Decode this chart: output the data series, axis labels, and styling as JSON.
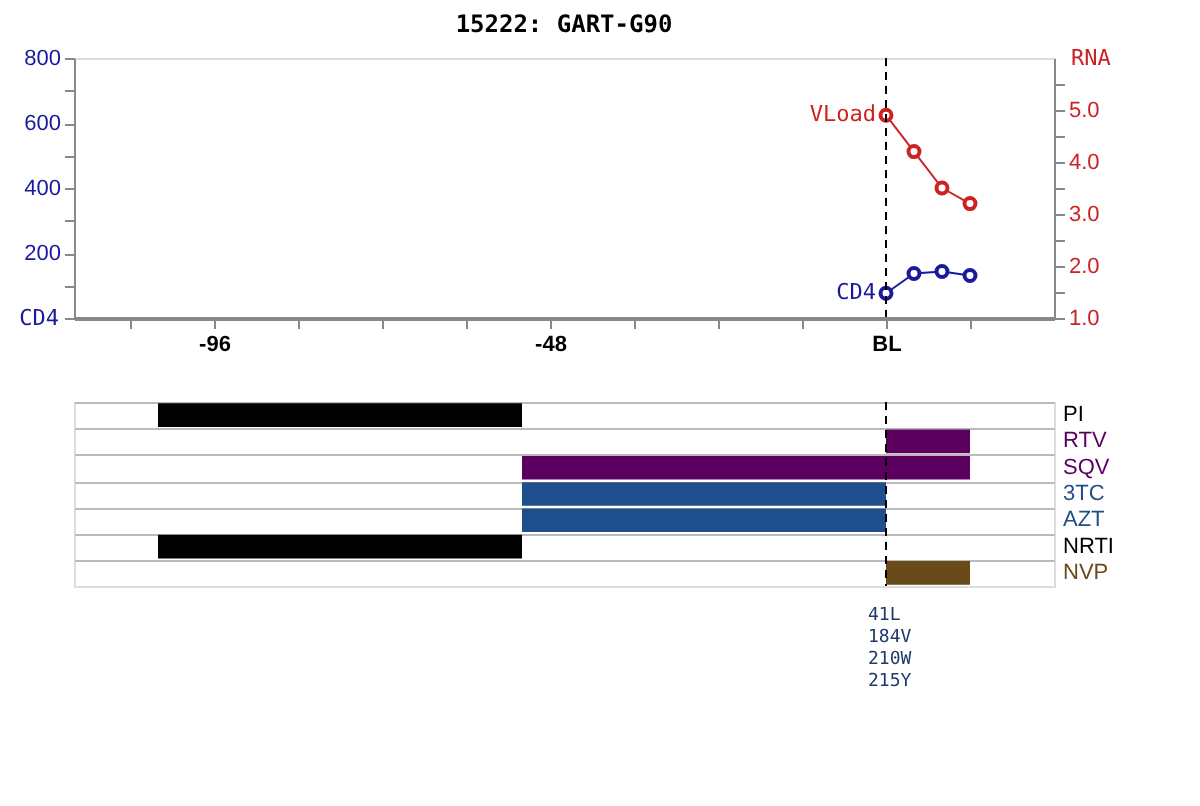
{
  "chart_data": [
    {
      "type": "line",
      "title": "15222: GART-G90",
      "ylabel": "CD4",
      "y2label": "RNA",
      "x": [
        0,
        4,
        8,
        12
      ],
      "xlim": [
        -116,
        24
      ],
      "xticks": [
        {
          "value": -108,
          "label": null
        },
        -96,
        {
          "value": -84,
          "label": null
        },
        {
          "value": -72,
          "label": null
        },
        {
          "value": -60,
          "label": null
        },
        -48,
        {
          "value": -36,
          "label": null
        },
        {
          "value": -24,
          "label": null
        },
        {
          "value": -12,
          "label": null
        },
        {
          "value": 0,
          "label": "BL"
        },
        {
          "value": 12,
          "label": null
        }
      ],
      "ylim": [
        0,
        800
      ],
      "yticks": [
        {
          "value": 0,
          "label": null
        },
        {
          "value": 100,
          "label": null
        },
        200,
        {
          "value": 300,
          "label": null
        },
        400,
        {
          "value": 500,
          "label": null
        },
        600,
        {
          "value": 700,
          "label": null
        },
        800
      ],
      "y2lim": [
        1,
        6
      ],
      "y2ticks": [
        {
          "value": 1,
          "label": "1.0"
        },
        {
          "value": 1.5,
          "label": null
        },
        {
          "value": 2,
          "label": "2.0"
        },
        {
          "value": 2.5,
          "label": null
        },
        {
          "value": 3,
          "label": "3.0"
        },
        {
          "value": 3.5,
          "label": null
        },
        {
          "value": 4,
          "label": "4.0"
        },
        {
          "value": 4.5,
          "label": null
        },
        {
          "value": 5,
          "label": "5.0"
        },
        {
          "value": 5.5,
          "label": null
        }
      ],
      "series": [
        {
          "name": "CD4",
          "color": "#1a1a9c",
          "values": [
            76,
            137,
            143,
            131
          ]
        },
        {
          "name": "VLoad",
          "color": "#cc2222",
          "values": [
            4.9,
            4.2,
            3.5,
            3.2
          ],
          "axis": "y2"
        }
      ],
      "marker": "circle",
      "line_style": "solid",
      "ref_lines": [
        {
          "axis": "x",
          "value": 0,
          "line_style": "dashed",
          "color": "#000000"
        }
      ]
    },
    {
      "type": "bar",
      "orientation": "horizontal",
      "categories": [
        "PI",
        "RTV",
        "SQV",
        "3TC",
        "AZT",
        "NRTI",
        "NVP"
      ],
      "base": [
        -104,
        0,
        -52,
        -52,
        -52,
        -104,
        0
      ],
      "values": [
        52,
        12,
        64,
        52,
        52,
        52,
        12
      ],
      "colors": [
        "#000000",
        "#5c0060",
        "#5c0060",
        "#1f4e8c",
        "#1f4e8c",
        "#000000",
        "#6b4a1a"
      ],
      "xlim": [
        -116,
        24
      ],
      "tick_labels": "y",
      "grid": "y",
      "ref_lines": [
        {
          "axis": "x",
          "value": 0,
          "line_style": "dashed",
          "color": "#000000"
        }
      ],
      "annotations": [
        "41L",
        "184V",
        "210W",
        "215Y"
      ]
    }
  ]
}
